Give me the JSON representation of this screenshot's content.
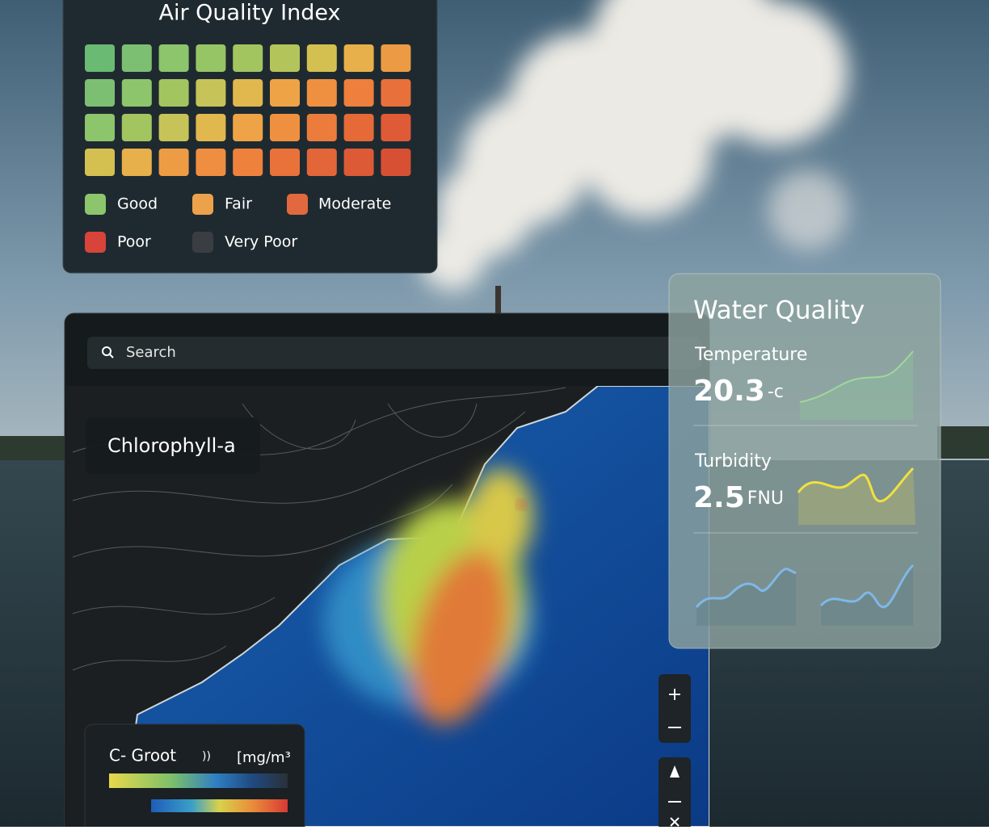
{
  "air_quality": {
    "title": "Air Quality Index",
    "cells": [
      [
        "#6aba73",
        "#7dbf72",
        "#8cc56b",
        "#96c566",
        "#a3c55f",
        "#b3c55a",
        "#d4c050",
        "#e7b04a",
        "#ec9b44"
      ],
      [
        "#7dbf72",
        "#8cc56b",
        "#a3c55f",
        "#c6c458",
        "#e1b84d",
        "#eea446",
        "#ef9040",
        "#ee7f3c",
        "#e8703a"
      ],
      [
        "#8cc56b",
        "#a3c55f",
        "#c6c458",
        "#e1b84d",
        "#eea446",
        "#ef9040",
        "#ec7c3c",
        "#e66a38",
        "#df5a36"
      ],
      [
        "#d4c050",
        "#e7b04a",
        "#ee9c44",
        "#ef8e40",
        "#ee823d",
        "#e9723a",
        "#e26638",
        "#dd5a36",
        "#d85034"
      ]
    ],
    "legend": [
      {
        "label": "Good",
        "color": "#8cc56b"
      },
      {
        "label": "Fair",
        "color": "#eba24a"
      },
      {
        "label": "Moderate",
        "color": "#e2683f"
      },
      {
        "label": "Poor",
        "color": "#d8443a"
      },
      {
        "label": "Very Poor",
        "color": "#3a3e42"
      }
    ]
  },
  "search": {
    "placeholder": "Search"
  },
  "map": {
    "layer": "Chlorophyll-a",
    "legend": {
      "title": "C- Groot",
      "symbol": "))",
      "unit": "[mg/m³"
    }
  },
  "water_quality": {
    "title": "Water Quality",
    "metrics": [
      {
        "name": "Temperature",
        "value": 20.3,
        "unit": "-c"
      },
      {
        "name": "Turbidity",
        "value": 2.5,
        "unit": "FNU"
      }
    ]
  }
}
